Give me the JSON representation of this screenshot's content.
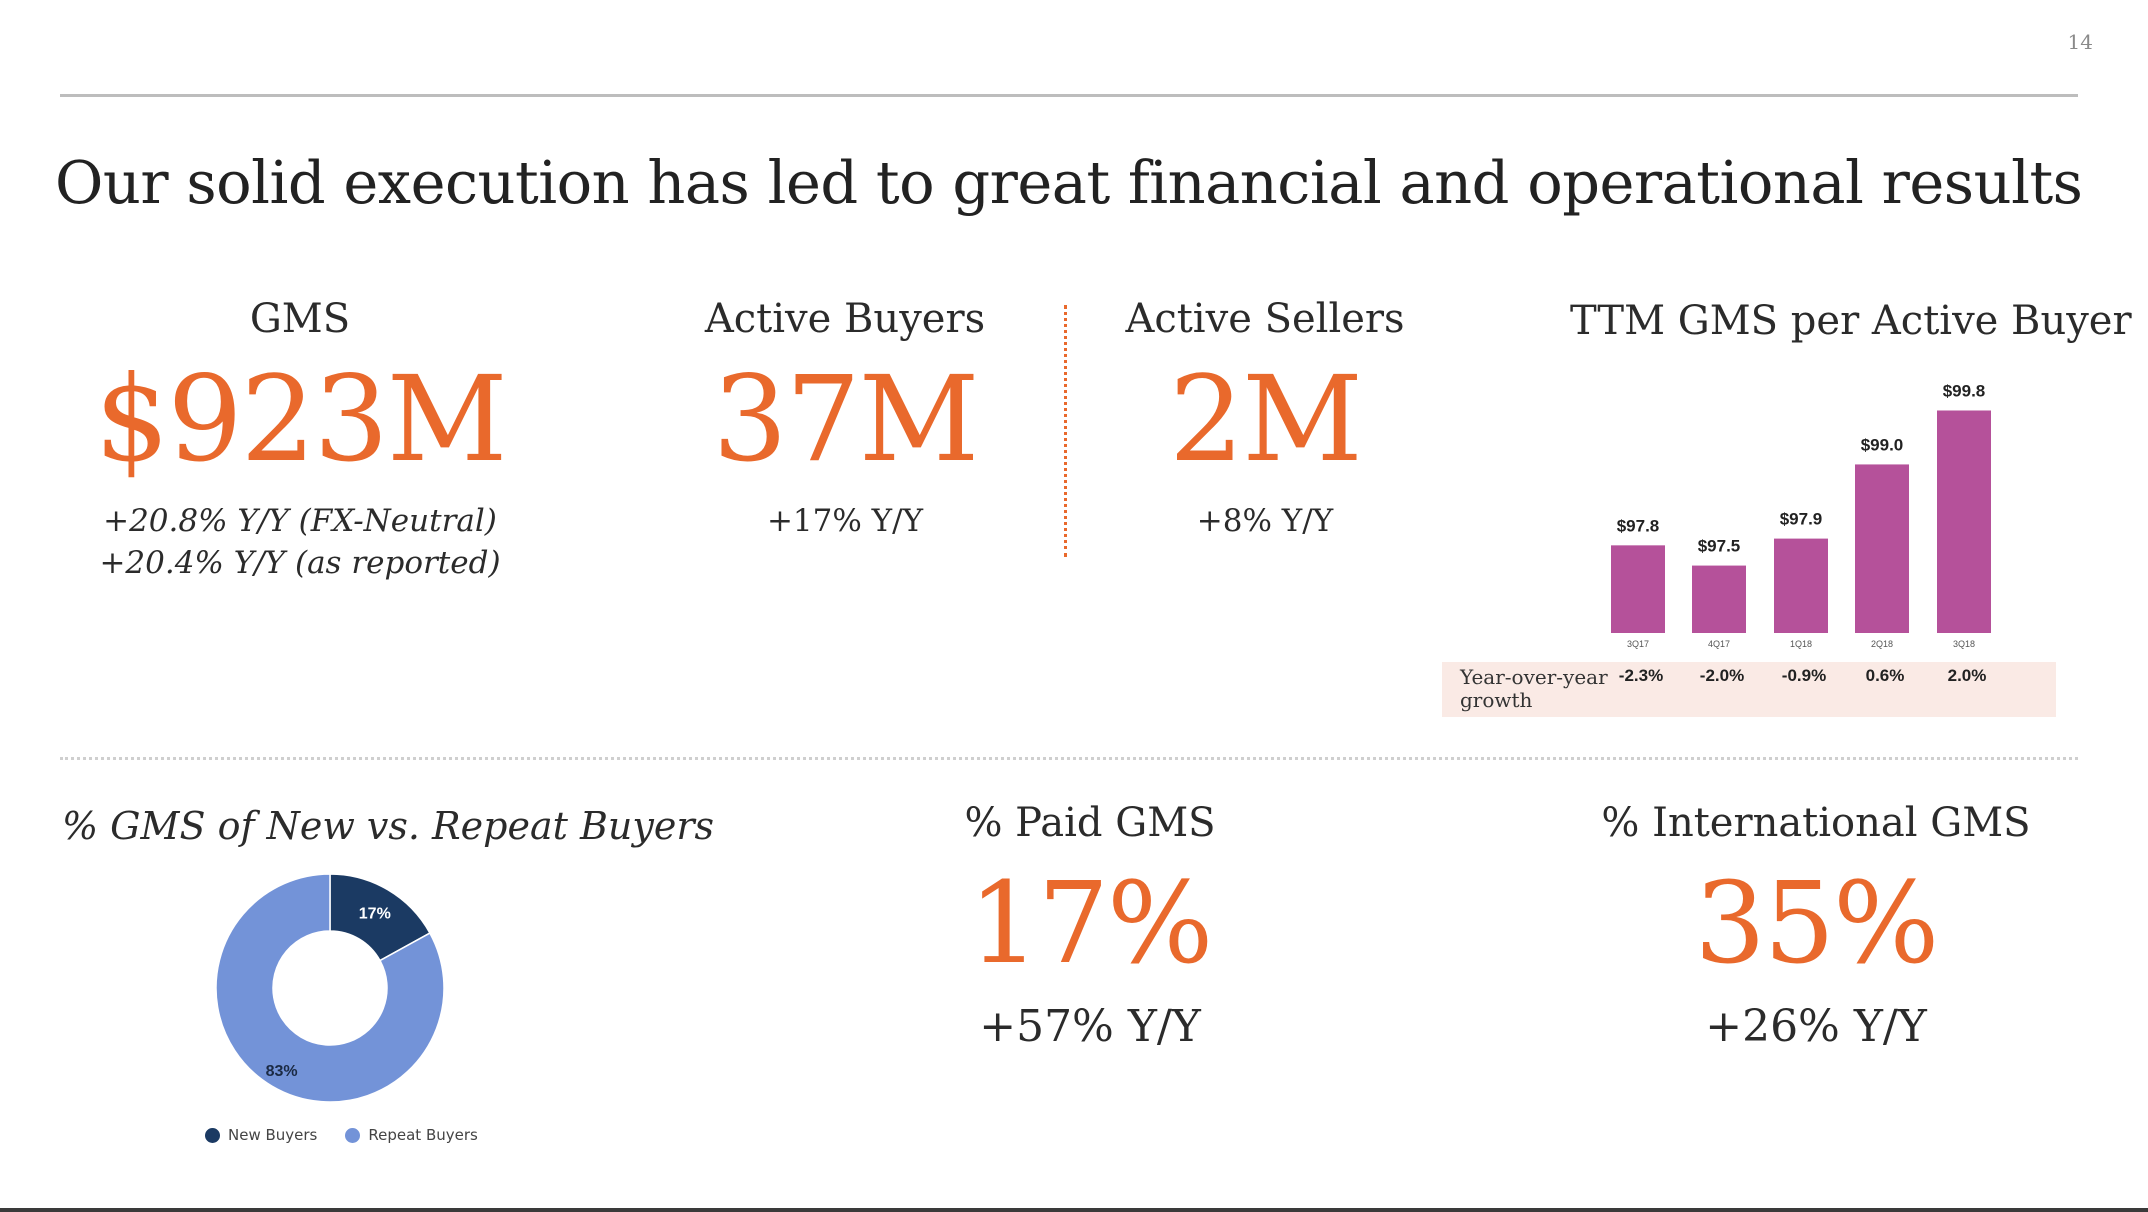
{
  "page_number": "14",
  "title": "Our solid execution has led to great financial and operational results",
  "metrics": {
    "gms": {
      "label": "GMS",
      "value": "$923M",
      "sub1": "+20.8% Y/Y (FX-Neutral)",
      "sub2": "+20.4% Y/Y (as reported)"
    },
    "active_buyers": {
      "label": "Active Buyers",
      "value": "37M",
      "sub": "+17% Y/Y"
    },
    "active_sellers": {
      "label": "Active Sellers",
      "value": "2M",
      "sub": "+8% Y/Y"
    },
    "paid_gms": {
      "label": "% Paid GMS",
      "value": "17%",
      "sub": "+57% Y/Y"
    },
    "international_gms": {
      "label": "% International GMS",
      "value": "35%",
      "sub": "+26% Y/Y"
    }
  },
  "growth_label": "Year-over-year growth",
  "colors": {
    "accent": "#e9692c",
    "bar": "#b5519a",
    "new_buyers": "#1b3a63",
    "repeat_buyers": "#7393d8"
  },
  "chart_data": [
    {
      "type": "bar",
      "title": "TTM GMS per Active Buyer",
      "categories": [
        "3Q17",
        "4Q17",
        "1Q18",
        "2Q18",
        "3Q18"
      ],
      "values": [
        97.8,
        97.5,
        97.9,
        99.0,
        99.8
      ],
      "value_labels": [
        "$97.8",
        "$97.5",
        "$97.9",
        "$99.0",
        "$99.8"
      ],
      "growth": [
        "-2.3%",
        "-2.0%",
        "-0.9%",
        "0.6%",
        "2.0%"
      ],
      "ylim": [
        96.5,
        100.0
      ]
    },
    {
      "type": "pie",
      "title": "% GMS of New vs. Repeat Buyers",
      "labels": [
        "New Buyers",
        "Repeat Buyers"
      ],
      "values": [
        17,
        83
      ],
      "value_labels": [
        "17%",
        "83%"
      ]
    }
  ]
}
